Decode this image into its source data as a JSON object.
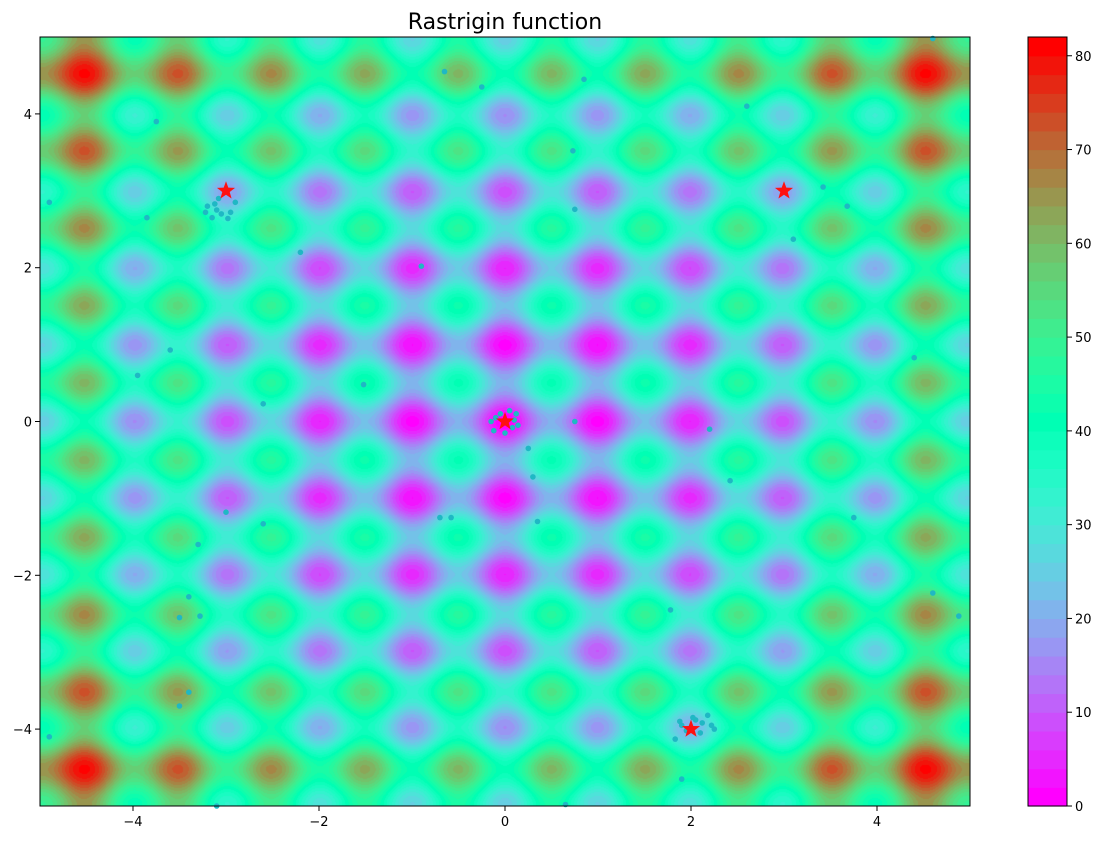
{
  "chart_data": {
    "type": "heatmap",
    "title": "Rastrigin function",
    "xlabel": "",
    "ylabel": "",
    "function": "z = 20 + x^2 + y^2 - 10*cos(2*pi*x) - 10*cos(2*pi*y)",
    "xlim": [
      -5,
      5
    ],
    "ylim": [
      -5,
      5
    ],
    "x_ticks": [
      -4,
      -2,
      0,
      2,
      4
    ],
    "y_ticks": [
      -4,
      -2,
      0,
      2,
      4
    ],
    "x_tick_labels": [
      "−4",
      "−2",
      "0",
      "2",
      "4"
    ],
    "y_tick_labels": [
      "−4",
      "−2",
      "0",
      "2",
      "4"
    ],
    "colormap": "rainbow",
    "colorbar": {
      "min": 0,
      "max": 82,
      "ticks": [
        0,
        10,
        20,
        30,
        40,
        50,
        60,
        70,
        80
      ],
      "tick_labels": [
        "0",
        "10",
        "20",
        "30",
        "40",
        "50",
        "60",
        "70",
        "80"
      ],
      "levels": 41
    },
    "stars": {
      "color": "#ff1010",
      "points": [
        [
          -3,
          3
        ],
        [
          3,
          3
        ],
        [
          0,
          0
        ],
        [
          2,
          -4
        ]
      ]
    },
    "scatter": {
      "color": "#1fb8c4",
      "points": [
        [
          -0.65,
          4.55
        ],
        [
          -0.25,
          4.35
        ],
        [
          0.85,
          4.45
        ],
        [
          2.6,
          4.1
        ],
        [
          4.6,
          4.98
        ],
        [
          -3.75,
          3.9
        ],
        [
          -4.9,
          2.85
        ],
        [
          -3.85,
          2.65
        ],
        [
          0.73,
          3.52
        ],
        [
          3.42,
          3.05
        ],
        [
          3.68,
          2.8
        ],
        [
          0.75,
          2.76
        ],
        [
          3.1,
          2.37
        ],
        [
          -2.2,
          2.2
        ],
        [
          -0.9,
          2.02
        ],
        [
          -3.6,
          0.93
        ],
        [
          -3.95,
          0.6
        ],
        [
          -1.52,
          0.48
        ],
        [
          4.4,
          0.83
        ],
        [
          -2.6,
          0.23
        ],
        [
          0.75,
          0.0
        ],
        [
          2.2,
          -0.1
        ],
        [
          0.25,
          -0.35
        ],
        [
          0.3,
          -0.72
        ],
        [
          2.42,
          -0.77
        ],
        [
          -2.6,
          -1.33
        ],
        [
          -3.3,
          -1.6
        ],
        [
          -0.7,
          -1.25
        ],
        [
          -0.58,
          -1.25
        ],
        [
          0.35,
          -1.3
        ],
        [
          3.75,
          -1.25
        ],
        [
          -3.0,
          -1.18
        ],
        [
          -3.4,
          -2.28
        ],
        [
          -3.5,
          -2.55
        ],
        [
          -3.28,
          -2.53
        ],
        [
          1.78,
          -2.45
        ],
        [
          4.6,
          -2.23
        ],
        [
          4.88,
          -2.53
        ],
        [
          -3.4,
          -3.52
        ],
        [
          -3.5,
          -3.7
        ],
        [
          -4.9,
          -4.1
        ],
        [
          1.83,
          -4.13
        ],
        [
          1.9,
          -4.65
        ],
        [
          -3.1,
          -5.0
        ],
        [
          0.65,
          -4.98
        ],
        [
          -3.2,
          2.8
        ],
        [
          -3.1,
          2.75
        ],
        [
          -3.05,
          2.7
        ],
        [
          -2.95,
          2.72
        ],
        [
          -3.15,
          2.65
        ],
        [
          -2.9,
          2.85
        ],
        [
          -3.08,
          2.9
        ],
        [
          -3.22,
          2.72
        ],
        [
          -2.98,
          2.64
        ],
        [
          -3.12,
          2.83
        ],
        [
          -0.1,
          0.05
        ],
        [
          0.08,
          -0.08
        ],
        [
          -0.12,
          -0.12
        ],
        [
          0.12,
          0.1
        ],
        [
          0.05,
          0.14
        ],
        [
          -0.15,
          0.0
        ],
        [
          0.0,
          -0.15
        ],
        [
          0.14,
          -0.05
        ],
        [
          -0.05,
          0.1
        ],
        [
          0.1,
          0.02
        ],
        [
          1.9,
          -3.95
        ],
        [
          2.05,
          -3.88
        ],
        [
          2.12,
          -3.92
        ],
        [
          2.22,
          -3.95
        ],
        [
          1.95,
          -4.02
        ],
        [
          2.1,
          -4.05
        ],
        [
          2.18,
          -3.82
        ],
        [
          2.02,
          -3.85
        ],
        [
          1.88,
          -3.9
        ],
        [
          2.25,
          -4.0
        ]
      ]
    }
  }
}
